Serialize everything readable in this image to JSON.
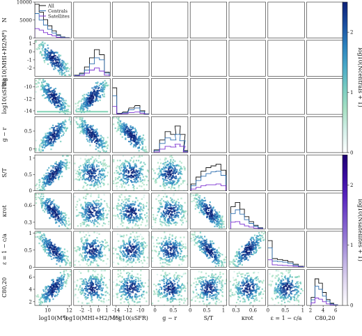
{
  "chart_data": {
    "type": "scatter",
    "variables": [
      {
        "key": "mstar",
        "xlabel": "log10(M*)",
        "ylabel": "",
        "range": [
          8.8,
          12.2
        ],
        "ticks": [
          10,
          12
        ]
      },
      {
        "key": "mhi",
        "xlabel": "log10(MHI+H2/M*)",
        "ylabel": "log10(MHI+H2/M*)",
        "range": [
          -3.0,
          1.4
        ],
        "ticks": [
          -2,
          -1,
          0,
          1
        ]
      },
      {
        "key": "ssfr",
        "xlabel": "log10(sSFR)",
        "ylabel": "log10(sSFR)",
        "range": [
          -14.6,
          -8.6
        ],
        "ticks": [
          -14,
          -12,
          -10
        ]
      },
      {
        "key": "gr",
        "xlabel": "g − r",
        "ylabel": "g − r",
        "range": [
          -0.1,
          0.9
        ],
        "ticks": [
          0.0,
          0.5
        ]
      },
      {
        "key": "st",
        "xlabel": "S/T",
        "ylabel": "S/T",
        "range": [
          0.0,
          1.1
        ],
        "ticks": [
          0.0,
          0.5,
          1.0
        ]
      },
      {
        "key": "krot",
        "xlabel": "κrot",
        "ylabel": "κrot",
        "range": [
          0.18,
          0.82
        ],
        "ticks": [
          0.3,
          0.6
        ]
      },
      {
        "key": "eps",
        "xlabel": "ε = 1 − c/a",
        "ylabel": "ε = 1 − c/a",
        "range": [
          0.0,
          1.05
        ],
        "ticks": [
          0.0,
          0.5,
          1.0
        ]
      },
      {
        "key": "c8020",
        "xlabel": "C80,20",
        "ylabel": "C80,20",
        "range": [
          1.4,
          7.2
        ],
        "ticks": [
          2,
          4,
          6
        ]
      }
    ],
    "row_yticks": [
      [
        0,
        5000,
        10000
      ],
      [
        -2,
        -1,
        0,
        1
      ],
      [
        -14,
        -12,
        -10
      ],
      [
        0.0,
        0.5
      ],
      [
        0.0,
        0.5,
        1.0
      ],
      [
        0.3,
        0.6
      ],
      [
        0.0,
        0.5,
        1.0
      ],
      [
        2,
        4,
        6
      ]
    ],
    "top_ylabel": "N",
    "histogram_ylim": [
      0,
      10000
    ],
    "legend": [
      "All",
      "Centrals",
      "Satellites"
    ],
    "series_colors": {
      "All": "#111111",
      "Centrals": "#2f6fb0",
      "Satellites": "#7a2fd0"
    },
    "correlation_sign": [
      [
        0,
        -1,
        -1,
        1,
        1,
        -1,
        -1,
        1
      ],
      [
        -1,
        0,
        1,
        -1,
        0,
        0,
        0,
        0
      ],
      [
        -1,
        1,
        0,
        -1,
        0,
        0,
        0,
        0
      ],
      [
        1,
        -1,
        -1,
        0,
        0,
        0,
        0,
        0
      ],
      [
        1,
        0,
        0,
        0,
        0,
        -1,
        -1,
        0
      ],
      [
        -1,
        0,
        0,
        0,
        -1,
        0,
        1,
        0
      ],
      [
        -1,
        0,
        0,
        0,
        -1,
        1,
        0,
        0
      ],
      [
        1,
        0,
        0,
        0,
        0,
        0,
        0,
        0
      ]
    ],
    "histograms": {
      "mstar": {
        "centers": [
          9.0,
          9.4,
          9.8,
          10.2,
          10.6,
          11.0,
          11.4,
          11.8
        ],
        "all": [
          9400,
          7200,
          5100,
          3400,
          2000,
          900,
          300,
          80
        ],
        "centrals": [
          6800,
          5000,
          3600,
          2400,
          1400,
          700,
          240,
          60
        ],
        "satellites": [
          2600,
          2200,
          1500,
          1000,
          600,
          200,
          60,
          20
        ]
      },
      "mhi": {
        "centers": [
          -2.6,
          -2.0,
          -1.4,
          -0.8,
          -0.2,
          0.4,
          1.0
        ],
        "all": [
          100,
          300,
          900,
          1800,
          2600,
          2100,
          400
        ],
        "centrals": [
          70,
          220,
          600,
          1200,
          1800,
          1600,
          300
        ],
        "satellites": [
          30,
          80,
          300,
          600,
          800,
          500,
          100
        ]
      },
      "ssfr": {
        "centers": [
          -14.3,
          -13.5,
          -12.5,
          -11.5,
          -10.5,
          -9.7,
          -9.0
        ],
        "all": [
          10000,
          400,
          900,
          2400,
          3300,
          1400,
          200
        ],
        "centrals": [
          7000,
          250,
          600,
          1700,
          2400,
          1000,
          150
        ],
        "satellites": [
          3000,
          150,
          300,
          700,
          900,
          400,
          50
        ]
      },
      "gr": {
        "centers": [
          0.05,
          0.2,
          0.35,
          0.5,
          0.62,
          0.75,
          0.85
        ],
        "all": [
          400,
          1800,
          3000,
          2600,
          3800,
          2600,
          300
        ],
        "centrals": [
          300,
          1300,
          2100,
          1800,
          2600,
          1700,
          200
        ],
        "satellites": [
          100,
          500,
          900,
          800,
          1200,
          900,
          100
        ]
      },
      "st": {
        "centers": [
          0.1,
          0.25,
          0.4,
          0.55,
          0.7,
          0.85,
          1.0
        ],
        "all": [
          800,
          1600,
          2300,
          2700,
          2900,
          3100,
          2400
        ],
        "centrals": [
          600,
          1200,
          1700,
          2000,
          2200,
          2300,
          1800
        ],
        "satellites": [
          200,
          400,
          600,
          700,
          700,
          800,
          600
        ]
      },
      "krot": {
        "centers": [
          0.25,
          0.33,
          0.41,
          0.49,
          0.57,
          0.65,
          0.73
        ],
        "all": [
          3600,
          4300,
          3200,
          2000,
          1200,
          600,
          200
        ],
        "centrals": [
          2500,
          3100,
          2400,
          1500,
          900,
          450,
          150
        ],
        "satellites": [
          1100,
          1200,
          800,
          500,
          300,
          150,
          50
        ]
      },
      "eps": {
        "centers": [
          0.05,
          0.2,
          0.35,
          0.5,
          0.65,
          0.8,
          0.95
        ],
        "all": [
          9000,
          2900,
          2600,
          2300,
          1800,
          1000,
          300
        ],
        "centrals": [
          6500,
          2100,
          1900,
          1700,
          1300,
          700,
          200
        ],
        "satellites": [
          2500,
          800,
          700,
          600,
          500,
          300,
          100
        ]
      },
      "c8020": {
        "centers": [
          2.4,
          3.0,
          3.6,
          4.2,
          4.8,
          5.4,
          6.0
        ],
        "all": [
          2600,
          8600,
          7200,
          4200,
          1900,
          700,
          200
        ],
        "centrals": [
          1800,
          6200,
          5200,
          3000,
          1400,
          500,
          150
        ],
        "satellites": [
          800,
          2400,
          2000,
          1200,
          500,
          200,
          50
        ]
      }
    },
    "colorbar_centrals": {
      "label": "log10(Ncentrals + 1)",
      "range": [
        0,
        2.5
      ],
      "ticks": [
        0,
        1,
        2
      ],
      "colors": [
        "#ffffff",
        "#d5f0ea",
        "#a8e1c4",
        "#79ccc1",
        "#4aa9c8",
        "#2b80bd",
        "#1a4c9e",
        "#0c2076"
      ]
    },
    "colorbar_satellites": {
      "label": "log10(Nsatellites + 1)",
      "range": [
        0,
        2.5
      ],
      "ticks": [
        0,
        1,
        2
      ],
      "colors": [
        "#ffffff",
        "#e4dcf2",
        "#c1b2e4",
        "#9a80d6",
        "#7a55cb",
        "#5a27c0",
        "#3a0ca0",
        "#1d0070"
      ]
    }
  }
}
